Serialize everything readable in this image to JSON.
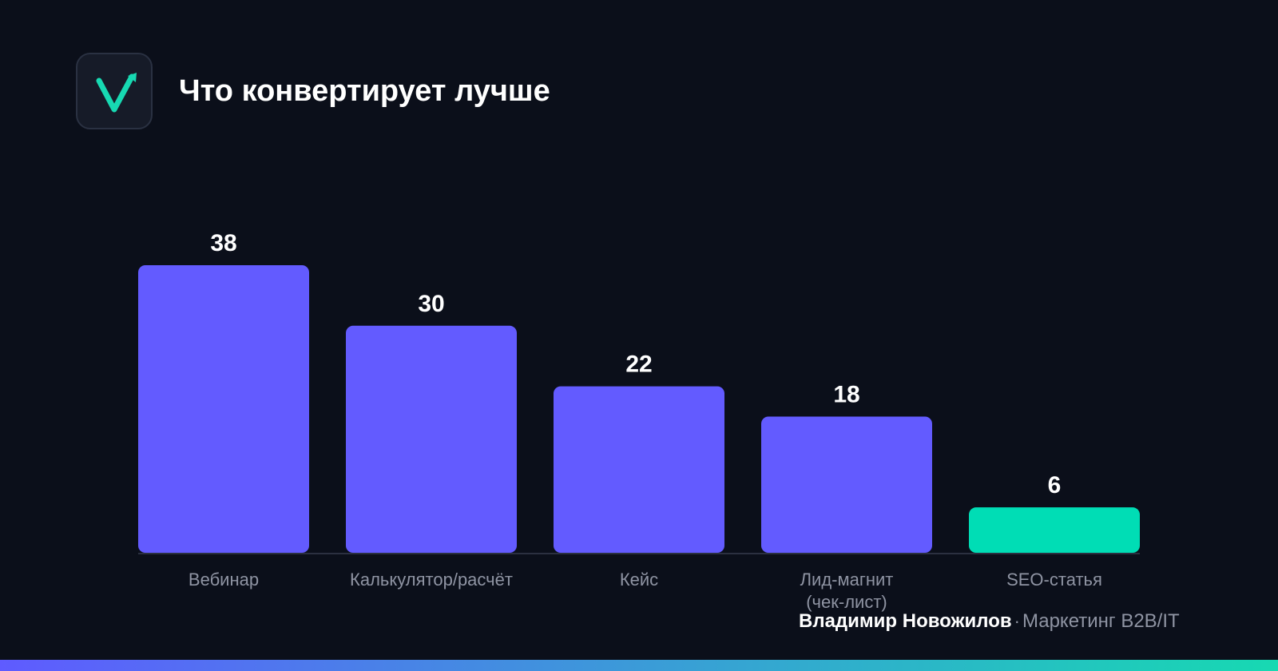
{
  "header": {
    "title": "Что конвертирует лучше",
    "logo_icon": "checkmark-arrow-icon"
  },
  "chart_data": {
    "type": "bar",
    "title": "Что конвертирует лучше",
    "xlabel": "",
    "ylabel": "",
    "ylim": [
      0,
      38
    ],
    "grid": false,
    "categories": [
      [
        "Вебинар"
      ],
      [
        "Калькулятор/расчёт"
      ],
      [
        "Кейс"
      ],
      [
        "Лид-магнит",
        "(чек-лист)"
      ],
      [
        "SEO-статья"
      ]
    ],
    "values": [
      38,
      30,
      22,
      18,
      6
    ],
    "bar_colors": [
      "#635bff",
      "#635bff",
      "#635bff",
      "#635bff",
      "#00ddb5"
    ]
  },
  "footer": {
    "author": "Владимир Новожилов",
    "separator": "·",
    "tagline": "Маркетинг B2B/IT"
  },
  "colors": {
    "background": "#0b0f1a",
    "bar_primary": "#635bff",
    "bar_accent": "#00ddb5",
    "baseline": "#2b3040"
  }
}
